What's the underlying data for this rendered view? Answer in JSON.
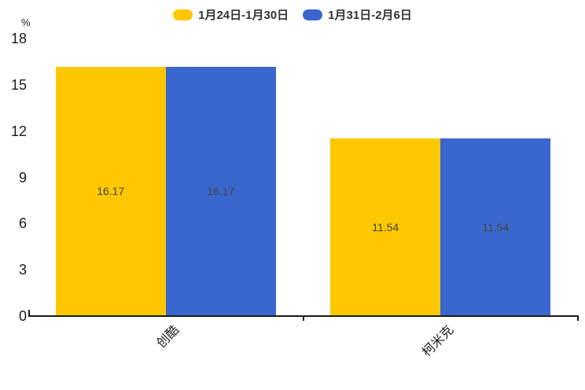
{
  "chart_data": {
    "type": "bar",
    "title": "",
    "categories": [
      "创酷",
      "柯米克"
    ],
    "series": [
      {
        "name": "1月24日-1月30日",
        "color": "#FDC702",
        "values": [
          16.17,
          11.54
        ]
      },
      {
        "name": "1月31日-2月6日",
        "color": "#3A67CD",
        "values": [
          16.17,
          11.54
        ]
      }
    ],
    "value_labels": [
      "16.17",
      "16.17",
      "11.54",
      "11.54"
    ],
    "xlabel": "",
    "ylabel": "%",
    "ylim": [
      0,
      18
    ],
    "yticks": [
      0,
      3,
      6,
      9,
      12,
      15,
      18
    ],
    "grid": false,
    "legend_position": "top-center",
    "value_label_position": "inside-center",
    "x_label_rotation_deg": -45
  },
  "colors": {
    "background": "#FFFFFF",
    "axis": "#1A1A1A",
    "tick_label": "#1A1A1A",
    "value_label": "#444444",
    "legend_text": "#333333",
    "series_yellow": "#FDC702",
    "series_blue": "#3A67CD"
  }
}
